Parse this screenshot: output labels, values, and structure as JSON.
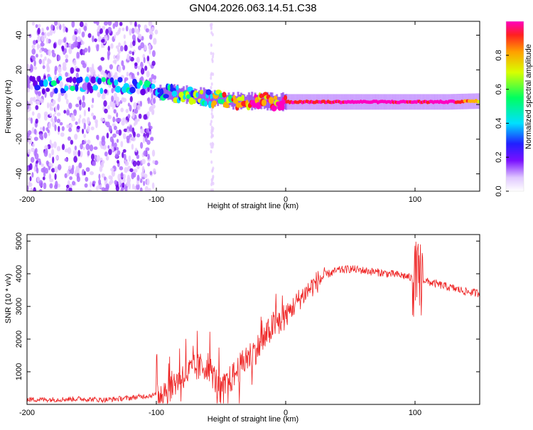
{
  "page_title": "GN04.2026.063.14.51.C38",
  "colors": {
    "background": "#ffffff",
    "frame": "#000000",
    "snr_line": "#ee2222",
    "colormap": [
      "#e6ccff",
      "#b070ff",
      "#6a00e8",
      "#2020ff",
      "#00d8ff",
      "#00ff80",
      "#d0ff00",
      "#ffb000",
      "#ff2020",
      "#ff00c0"
    ]
  },
  "chart_data": [
    {
      "id": "spectrogram",
      "type": "heatmap",
      "title": "GN04.2026.063.14.51.C38",
      "xlabel": "Height of straight line (km)",
      "ylabel": "Frequency (Hz)",
      "xlim": [
        -200,
        150
      ],
      "ylim": [
        -50,
        48
      ],
      "xticks": [
        -200,
        -100,
        0,
        100
      ],
      "yticks": [
        -40,
        -20,
        0,
        20,
        40
      ],
      "colorbar": {
        "label": "Normalized spectral amplitude",
        "range": [
          0.0,
          1.0
        ],
        "ticks": [
          "0.0",
          "0.2",
          "0.4",
          "0.6",
          "0.8"
        ]
      },
      "dominant_frequency_trace": {
        "x": [
          -200,
          -175,
          -150,
          -125,
          -100,
          -80,
          -60,
          -40,
          -20,
          0,
          25,
          50,
          75,
          100,
          125,
          150
        ],
        "freq_hz": [
          11,
          12,
          11,
          11,
          7,
          6,
          4,
          2,
          2,
          1.5,
          1.5,
          1.5,
          1.5,
          1.5,
          1.5,
          2
        ],
        "amplitude": [
          0.25,
          0.4,
          0.3,
          0.45,
          0.4,
          0.5,
          0.55,
          0.7,
          0.8,
          0.85,
          0.9,
          0.95,
          0.95,
          0.9,
          0.95,
          0.7
        ]
      },
      "noise_region_x": [
        -200,
        -100
      ]
    },
    {
      "id": "snr",
      "type": "line",
      "xlabel": "Height of straight line (km)",
      "ylabel": "SNR (10 * v/v)",
      "xlim": [
        -200,
        150
      ],
      "ylim": [
        0,
        5200
      ],
      "xticks": [
        -200,
        -100,
        0,
        100
      ],
      "yticks": [
        1000,
        2000,
        3000,
        4000,
        5000
      ],
      "series": [
        {
          "name": "SNR",
          "x": [
            -200,
            -180,
            -160,
            -140,
            -120,
            -110,
            -100,
            -90,
            -80,
            -70,
            -60,
            -50,
            -40,
            -30,
            -20,
            -10,
            0,
            10,
            20,
            30,
            40,
            50,
            60,
            70,
            80,
            90,
            95,
            100,
            103,
            105,
            110,
            120,
            130,
            140,
            150
          ],
          "y": [
            150,
            150,
            170,
            140,
            200,
            250,
            300,
            500,
            900,
            1100,
            1200,
            400,
            900,
            1400,
            1800,
            2400,
            2700,
            3200,
            3600,
            3950,
            4100,
            4150,
            4100,
            4050,
            4000,
            3950,
            3900,
            3800,
            3700,
            3850,
            3750,
            3650,
            3550,
            3450,
            3400
          ]
        }
      ]
    }
  ]
}
